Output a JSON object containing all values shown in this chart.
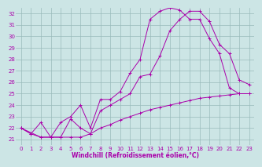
{
  "background_color": "#cce5e5",
  "grid_color": "#99bbbb",
  "line_color": "#aa00aa",
  "xlabel": "Windchill (Refroidissement éolien,°C)",
  "xlabel_color": "#aa00aa",
  "xlim": [
    -0.5,
    23.5
  ],
  "ylim": [
    20.5,
    32.5
  ],
  "yticks": [
    21,
    22,
    23,
    24,
    25,
    26,
    27,
    28,
    29,
    30,
    31,
    32
  ],
  "xticks": [
    0,
    1,
    2,
    3,
    4,
    5,
    6,
    7,
    8,
    9,
    10,
    11,
    12,
    13,
    14,
    15,
    16,
    17,
    18,
    19,
    20,
    21,
    22,
    23
  ],
  "line1_x": [
    0,
    1,
    2,
    3,
    4,
    5,
    6,
    7,
    8,
    9,
    10,
    11,
    12,
    13,
    14,
    15,
    16,
    17,
    18,
    19,
    20,
    21,
    22,
    23
  ],
  "line1_y": [
    22.0,
    21.5,
    21.2,
    21.2,
    21.2,
    21.2,
    21.2,
    21.5,
    22.0,
    22.3,
    22.7,
    23.0,
    23.3,
    23.6,
    23.8,
    24.0,
    24.2,
    24.4,
    24.6,
    24.7,
    24.8,
    24.9,
    25.0,
    25.0
  ],
  "line2_x": [
    0,
    2,
    3,
    4,
    5,
    6,
    7,
    8,
    9,
    10,
    11,
    12,
    13,
    14,
    15,
    16,
    17,
    18,
    19,
    20,
    21,
    22,
    23
  ],
  "line2_y": [
    22.0,
    21.2,
    21.2,
    21.2,
    22.8,
    22.0,
    21.5,
    23.5,
    24.0,
    24.5,
    25.0,
    26.5,
    26.7,
    28.3,
    30.5,
    31.5,
    32.2,
    32.2,
    31.3,
    29.3,
    28.5,
    26.2,
    25.8
  ],
  "line3_x": [
    0,
    1,
    2,
    3,
    4,
    5,
    6,
    7,
    8,
    9,
    10,
    11,
    12,
    13,
    14,
    15,
    16,
    17,
    18,
    19,
    20,
    21,
    22,
    23
  ],
  "line3_y": [
    22.0,
    21.5,
    22.5,
    21.2,
    22.5,
    23.0,
    24.0,
    22.0,
    24.5,
    24.5,
    25.2,
    26.8,
    28.0,
    31.5,
    32.2,
    32.5,
    32.3,
    31.5,
    31.5,
    29.8,
    28.5,
    25.5,
    25.0,
    25.0
  ],
  "marker": "+",
  "lw": 0.7,
  "ms": 2.5,
  "tick_fontsize": 5,
  "xlabel_fontsize": 5.5
}
